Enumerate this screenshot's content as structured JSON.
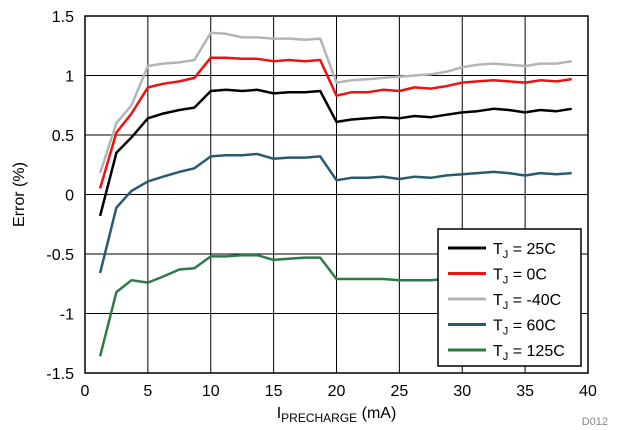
{
  "chart_data": {
    "type": "line",
    "xlabel": {
      "main": "I",
      "sub": "PRECHARGE",
      "unit": " (mA)"
    },
    "ylabel": "Error (%)",
    "xlim": [
      0,
      40
    ],
    "ylim": [
      -1.5,
      1.5
    ],
    "x_ticks": [
      0,
      5,
      10,
      15,
      20,
      25,
      30,
      35,
      40
    ],
    "y_ticks": [
      -1.5,
      -1,
      -0.5,
      0,
      0.5,
      1,
      1.5
    ],
    "x_tick_labels": [
      "0",
      "5",
      "10",
      "15",
      "20",
      "25",
      "30",
      "35",
      "40"
    ],
    "y_tick_labels": [
      "-1.5",
      "-1",
      "-0.5",
      "0",
      "0.5",
      "1",
      "1.5"
    ],
    "grid": true,
    "legend_position": "lower-right",
    "figure_id": "D012",
    "x": [
      1.2,
      2.5,
      3.7,
      5.0,
      6.2,
      7.5,
      8.7,
      10.0,
      11.2,
      12.5,
      13.7,
      15.0,
      16.2,
      17.5,
      18.7,
      20.0,
      21.2,
      22.5,
      23.7,
      25.0,
      26.2,
      27.5,
      28.7,
      30.0,
      31.2,
      32.5,
      33.7,
      35.0,
      36.2,
      37.5,
      38.7
    ],
    "series": [
      {
        "name_main": "T",
        "name_sub": "J",
        "name_rest": " = 25C",
        "color": "#000000",
        "values": [
          -0.18,
          0.35,
          0.48,
          0.64,
          0.68,
          0.71,
          0.73,
          0.87,
          0.88,
          0.87,
          0.88,
          0.85,
          0.86,
          0.86,
          0.87,
          0.61,
          0.63,
          0.64,
          0.65,
          0.64,
          0.66,
          0.65,
          0.67,
          0.69,
          0.7,
          0.72,
          0.71,
          0.69,
          0.71,
          0.7,
          0.72
        ]
      },
      {
        "name_main": "T",
        "name_sub": "J",
        "name_rest": " = 0C",
        "color": "#ee1111",
        "values": [
          0.05,
          0.52,
          0.68,
          0.9,
          0.93,
          0.95,
          0.98,
          1.15,
          1.15,
          1.14,
          1.14,
          1.12,
          1.13,
          1.12,
          1.13,
          0.83,
          0.86,
          0.86,
          0.88,
          0.87,
          0.9,
          0.89,
          0.91,
          0.94,
          0.95,
          0.96,
          0.95,
          0.94,
          0.96,
          0.95,
          0.97
        ]
      },
      {
        "name_main": "T",
        "name_sub": "J",
        "name_rest": " = -40C",
        "color": "#b4b4b4",
        "values": [
          0.18,
          0.6,
          0.75,
          1.08,
          1.1,
          1.11,
          1.13,
          1.36,
          1.35,
          1.32,
          1.32,
          1.31,
          1.31,
          1.3,
          1.31,
          0.94,
          0.96,
          0.97,
          0.98,
          0.99,
          1.0,
          1.01,
          1.03,
          1.07,
          1.09,
          1.1,
          1.09,
          1.08,
          1.1,
          1.1,
          1.12
        ]
      },
      {
        "name_main": "T",
        "name_sub": "J",
        "name_rest": " = 60C",
        "color": "#2a5a6e",
        "values": [
          -0.66,
          -0.11,
          0.03,
          0.11,
          0.15,
          0.19,
          0.22,
          0.32,
          0.33,
          0.33,
          0.34,
          0.3,
          0.31,
          0.31,
          0.32,
          0.12,
          0.14,
          0.14,
          0.15,
          0.13,
          0.15,
          0.14,
          0.16,
          0.17,
          0.18,
          0.19,
          0.18,
          0.16,
          0.18,
          0.17,
          0.18
        ]
      },
      {
        "name_main": "T",
        "name_sub": "J",
        "name_rest": " = 125C",
        "color": "#2e7a4a",
        "values": [
          -1.36,
          -0.82,
          -0.72,
          -0.74,
          -0.69,
          -0.63,
          -0.62,
          -0.52,
          -0.52,
          -0.51,
          -0.51,
          -0.55,
          -0.54,
          -0.53,
          -0.53,
          -0.71,
          -0.71,
          -0.71,
          -0.71,
          -0.72,
          -0.72,
          -0.72,
          -0.71,
          -0.7,
          -0.71,
          -0.72,
          -0.7,
          -0.71,
          -0.71,
          -0.72,
          -0.71
        ]
      }
    ]
  }
}
